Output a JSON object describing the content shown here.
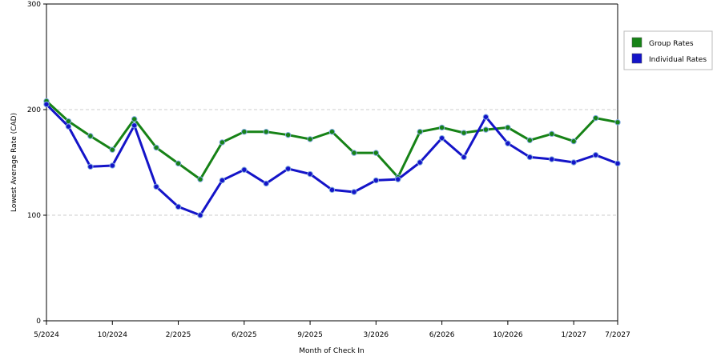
{
  "chart_data": {
    "type": "line",
    "title": "",
    "xlabel": "Month of Check In",
    "ylabel": "Lowest Average Rate (CAD)",
    "ylim": [
      0,
      300
    ],
    "yticks": [
      0,
      100,
      200,
      300
    ],
    "grid": "horizontal dashed",
    "legend_position": "right",
    "x_count": 27,
    "xtick_labels": [
      {
        "index": 0,
        "label": "5/2024"
      },
      {
        "index": 3,
        "label": "10/2024"
      },
      {
        "index": 6,
        "label": "2/2025"
      },
      {
        "index": 9,
        "label": "6/2025"
      },
      {
        "index": 12,
        "label": "9/2025"
      },
      {
        "index": 15,
        "label": "3/2026"
      },
      {
        "index": 18,
        "label": "6/2026"
      },
      {
        "index": 21,
        "label": "10/2026"
      },
      {
        "index": 24,
        "label": "1/2027"
      },
      {
        "index": 26,
        "label": "7/2027"
      }
    ],
    "series": [
      {
        "name": "Group Rates",
        "color": "#168216",
        "values": [
          208,
          189,
          175,
          162,
          191,
          164,
          149,
          134,
          169,
          179,
          179,
          176,
          172,
          179,
          159,
          159,
          136,
          179,
          183,
          178,
          181,
          183,
          171,
          177,
          170,
          192,
          188
        ]
      },
      {
        "name": "Individual Rates",
        "color": "#1414c8",
        "values": [
          205,
          184,
          146,
          147,
          185,
          127,
          108,
          100,
          133,
          143,
          130,
          144,
          139,
          124,
          122,
          133,
          134,
          150,
          173,
          155,
          193,
          168,
          155,
          153,
          150,
          157,
          149
        ]
      }
    ]
  }
}
